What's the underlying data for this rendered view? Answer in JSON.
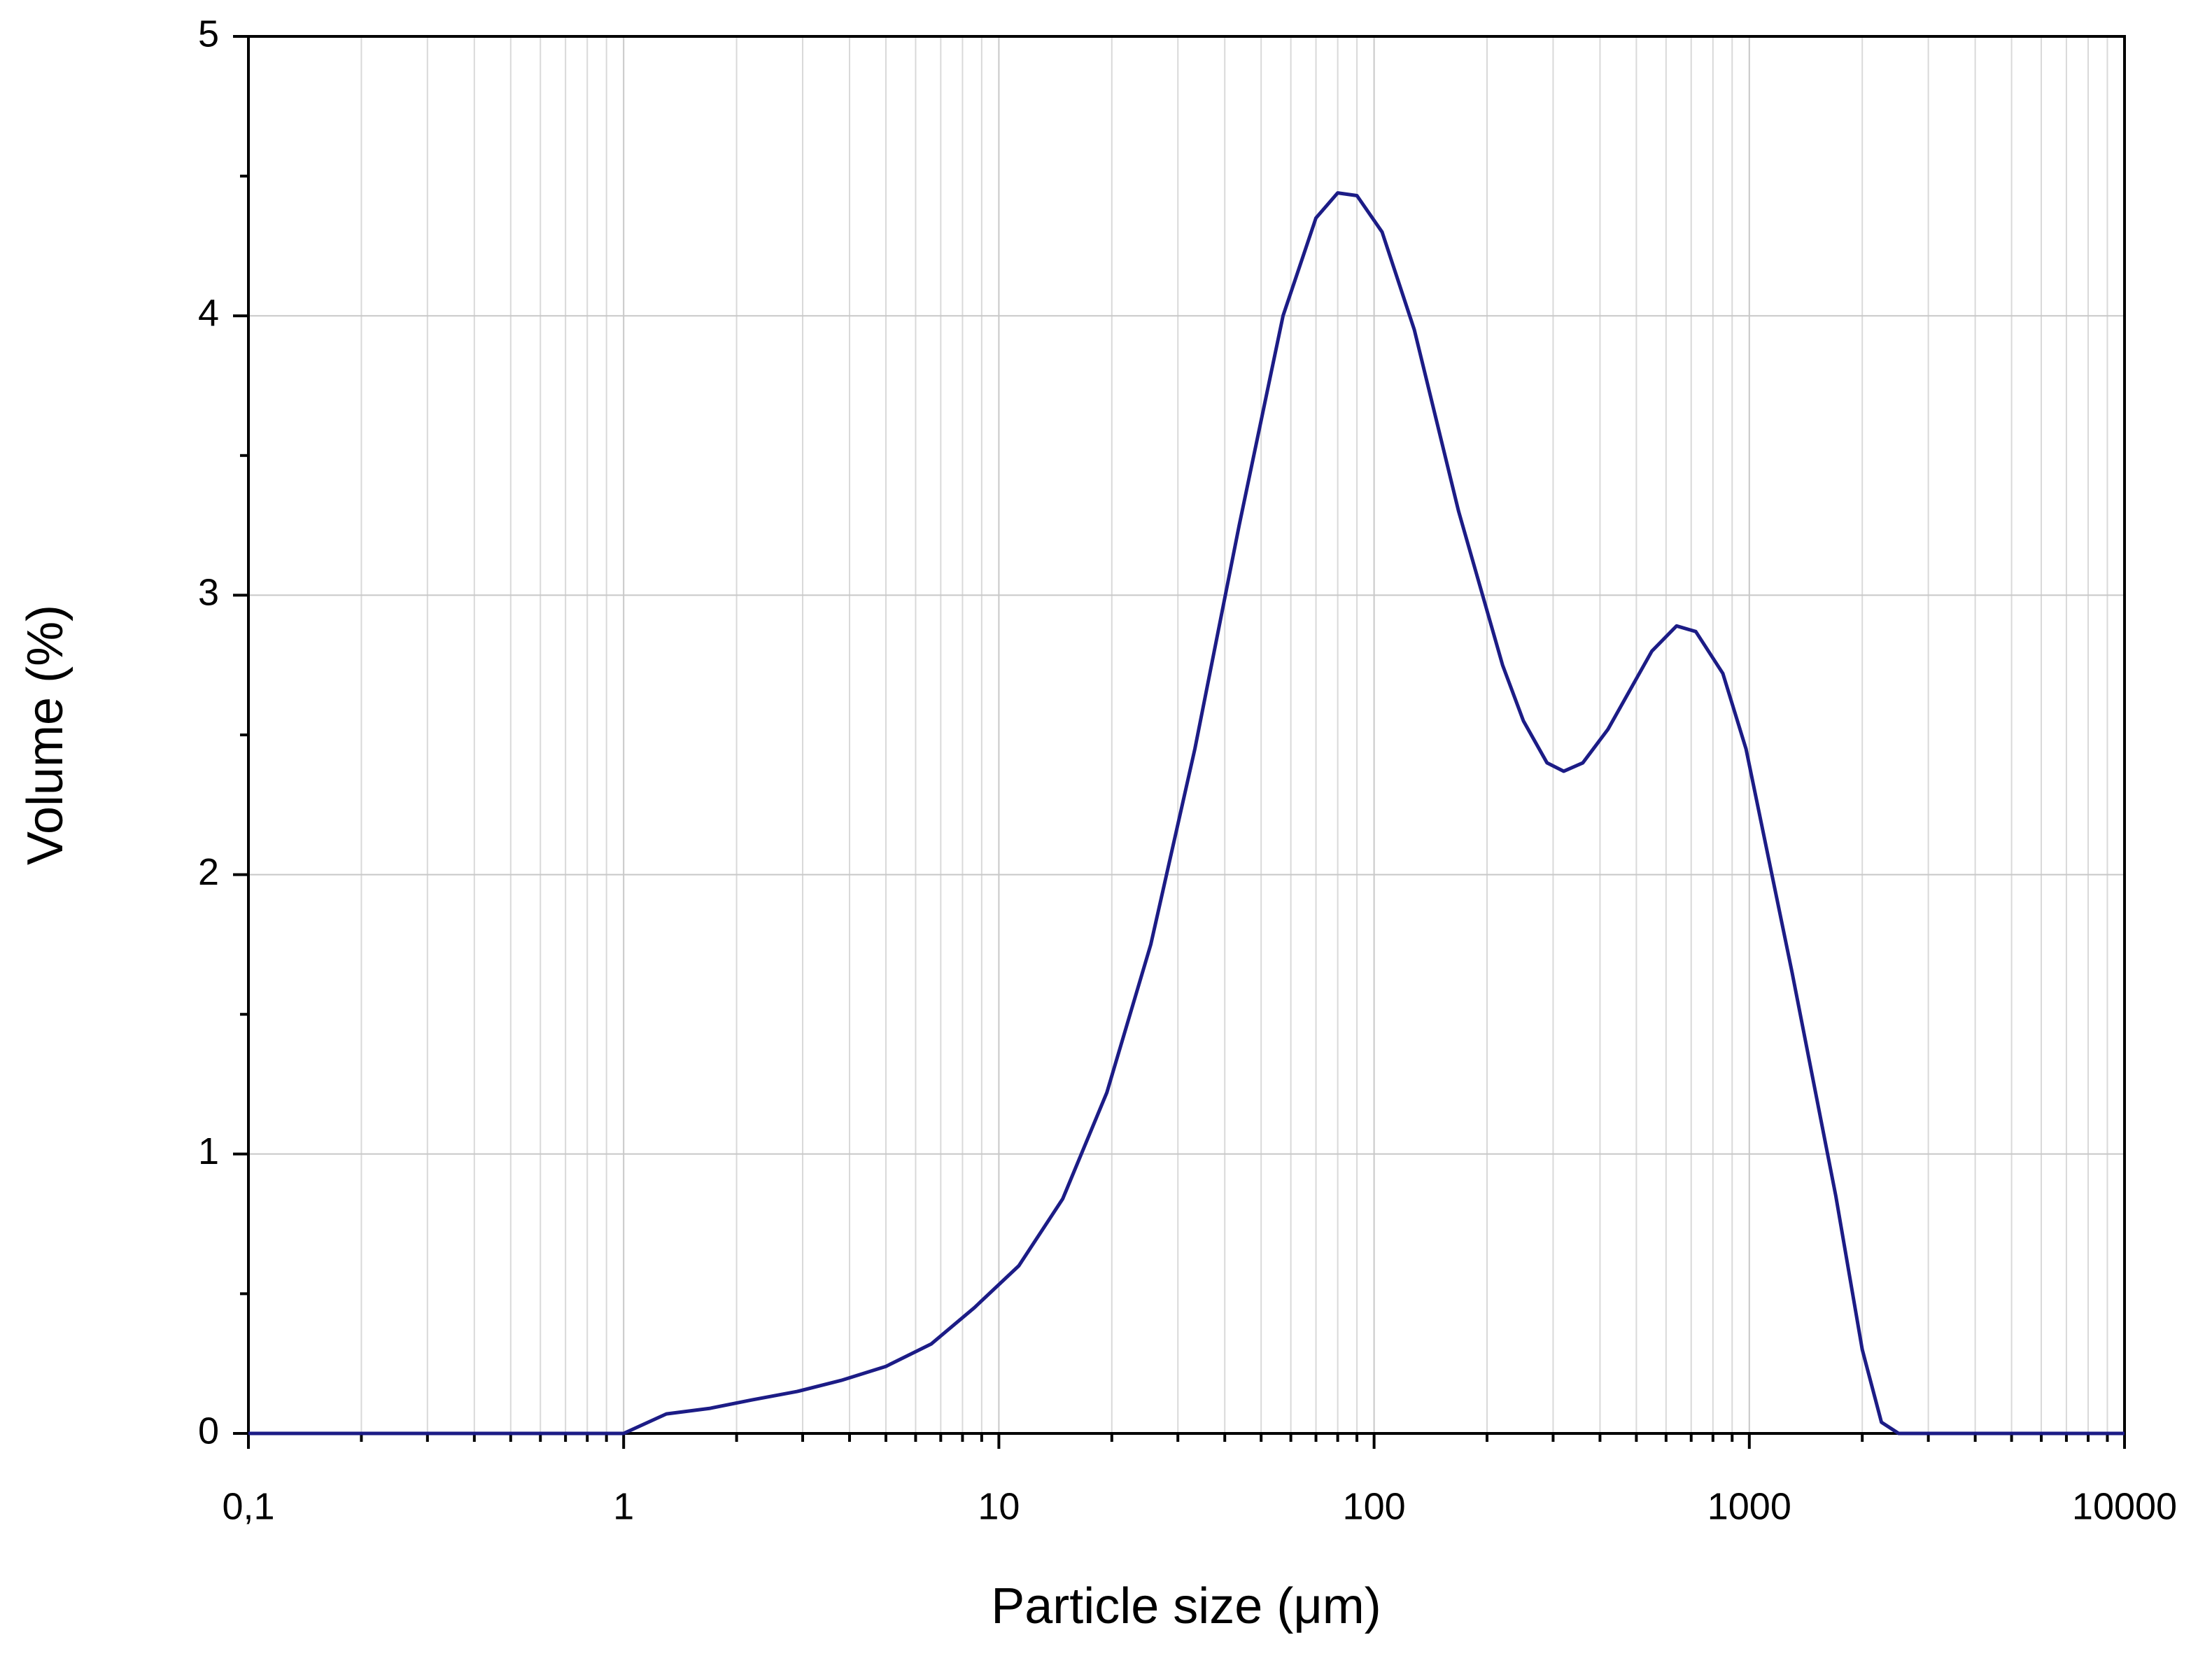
{
  "chart_data": {
    "type": "line",
    "x_label": "Particle size (μm)",
    "y_label": "Volume (%)",
    "x": [
      0.1,
      1,
      1.3,
      1.7,
      2.2,
      2.9,
      3.8,
      5,
      6.6,
      8.6,
      11.3,
      14.8,
      19.4,
      25.4,
      33.3,
      43.7,
      57.2,
      70,
      80,
      90,
      105,
      128,
      168,
      220,
      250,
      289,
      320,
      360,
      420,
      550,
      640,
      720,
      850,
      980,
      1300,
      1700,
      2000,
      2250,
      2500,
      10000
    ],
    "series": [
      {
        "color": "#1c1c86",
        "values": [
          0,
          0,
          0.07,
          0.09,
          0.12,
          0.15,
          0.19,
          0.24,
          0.32,
          0.45,
          0.6,
          0.84,
          1.22,
          1.75,
          2.45,
          3.25,
          4.0,
          4.35,
          4.44,
          4.43,
          4.3,
          3.95,
          3.3,
          2.75,
          2.55,
          2.4,
          2.37,
          2.4,
          2.52,
          2.8,
          2.89,
          2.87,
          2.72,
          2.45,
          1.65,
          0.85,
          0.3,
          0.04,
          0,
          0
        ]
      }
    ],
    "xlim": [
      0.1,
      10000
    ],
    "xticks": [
      {
        "value": 0.1,
        "label": "0,1"
      },
      1,
      10,
      100,
      1000,
      10000
    ],
    "ylim": [
      0,
      5
    ],
    "yticks": [
      0,
      1,
      2,
      3,
      4,
      5
    ],
    "x_log": true,
    "grid": true
  }
}
